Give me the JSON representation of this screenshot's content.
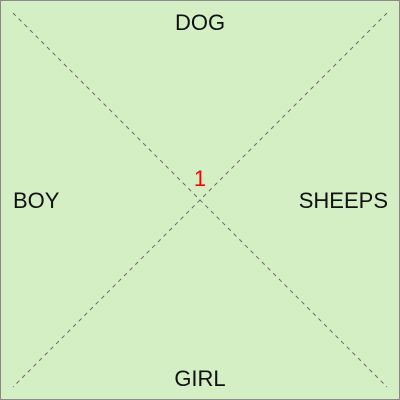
{
  "labels": {
    "top": "DOG",
    "left": "BOY",
    "right": "SHEEPS",
    "bottom": "GIRL"
  },
  "center_number": "1",
  "colors": {
    "background": "#d5efc5",
    "border": "#8a8a8a",
    "diagonal": "#6a6a6a",
    "text": "#111111",
    "number": "#ff0000"
  }
}
